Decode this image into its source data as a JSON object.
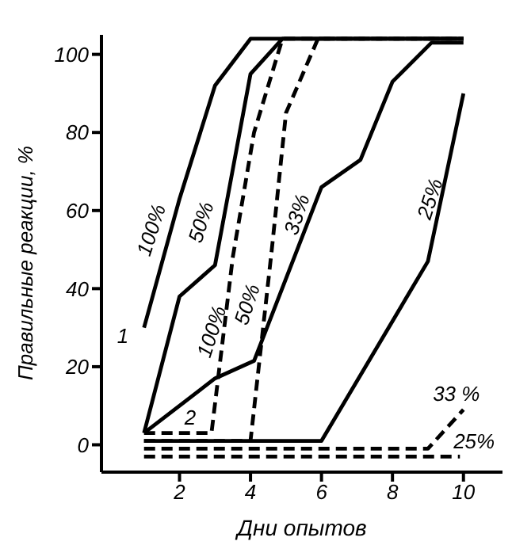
{
  "chart_data": {
    "type": "line",
    "xlabel": "Дни опытов",
    "ylabel": "Правильные реакции, %",
    "xlim": [
      -0.2,
      11.1
    ],
    "ylim": [
      -7,
      105
    ],
    "xticks": [
      2,
      4,
      6,
      8,
      10
    ],
    "yticks": [
      0,
      20,
      40,
      60,
      80,
      100
    ],
    "grid": false,
    "marker": "none",
    "series": [
      {
        "name": "100%",
        "color": "#000000",
        "line_style": "solid",
        "x": [
          1,
          2,
          3,
          4,
          10
        ],
        "values": [
          30,
          63,
          92,
          104,
          104
        ]
      },
      {
        "name": "50%",
        "color": "#000000",
        "line_style": "solid",
        "x": [
          1,
          2,
          3,
          4,
          4.9,
          10
        ],
        "values": [
          3,
          38,
          46,
          95,
          104,
          104
        ]
      },
      {
        "name": "33%",
        "color": "#000000",
        "line_style": "solid",
        "x": [
          1,
          3,
          4.1,
          6,
          7.1,
          8,
          9.1,
          10
        ],
        "values": [
          3,
          17,
          21.5,
          66,
          73,
          93,
          103,
          103
        ]
      },
      {
        "name": "25%",
        "color": "#000000",
        "line_style": "solid",
        "x": [
          1,
          6,
          9,
          10
        ],
        "values": [
          1,
          1,
          47,
          90
        ]
      },
      {
        "name": "100%",
        "color": "#000000",
        "line_style": "dashed",
        "x": [
          1,
          2.9,
          3.5,
          4.1,
          4.9,
          10
        ],
        "values": [
          3,
          3,
          48,
          80,
          104,
          104
        ]
      },
      {
        "name": "50%",
        "color": "#000000",
        "line_style": "dashed",
        "x": [
          1,
          4,
          4.6,
          5,
          5.9,
          10
        ],
        "values": [
          1,
          1,
          50,
          85,
          104,
          104
        ]
      },
      {
        "name": "33 %",
        "color": "#000000",
        "line_style": "dashed",
        "x": [
          1,
          9,
          10
        ],
        "values": [
          -1,
          -1,
          9
        ]
      },
      {
        "name": "25%",
        "color": "#000000",
        "line_style": "dashed",
        "x": [
          1,
          9.9
        ],
        "values": [
          -3,
          -3
        ]
      }
    ],
    "annotations": [
      "1",
      "2"
    ]
  }
}
